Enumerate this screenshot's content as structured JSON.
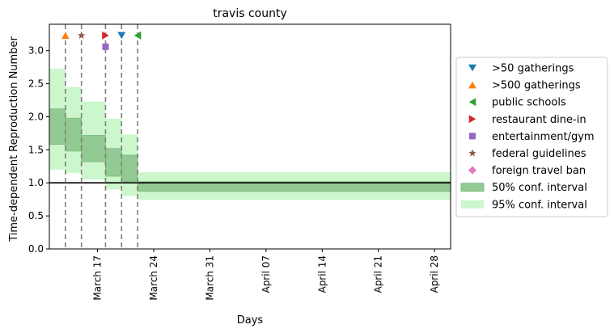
{
  "chart_data": {
    "type": "step",
    "title": "travis county",
    "xlabel": "Days",
    "ylabel": "Time-dependent Reproduction Number",
    "x_start": "2020-03-11",
    "x_end": "2020-04-30",
    "xticks": [
      "March 17",
      "March 24",
      "March 31",
      "April 07",
      "April 14",
      "April 21",
      "April 28"
    ],
    "xtick_dates": [
      "2020-03-17",
      "2020-03-24",
      "2020-03-31",
      "2020-04-07",
      "2020-04-14",
      "2020-04-21",
      "2020-04-28"
    ],
    "ylim": [
      0,
      3.4
    ],
    "yticks": [
      "0.0",
      "0.5",
      "1.0",
      "1.5",
      "2.0",
      "2.5",
      "3.0"
    ],
    "ytick_values": [
      0,
      0.5,
      1.0,
      1.5,
      2.0,
      2.5,
      3.0
    ],
    "reference_line": 1.0,
    "segments": [
      {
        "start": "2020-03-11",
        "end": "2020-03-13",
        "ci50": [
          1.58,
          2.12
        ],
        "ci95": [
          1.2,
          2.73
        ]
      },
      {
        "start": "2020-03-13",
        "end": "2020-03-15",
        "ci50": [
          1.48,
          1.98
        ],
        "ci95": [
          1.15,
          2.45
        ]
      },
      {
        "start": "2020-03-15",
        "end": "2020-03-18",
        "ci50": [
          1.32,
          1.72
        ],
        "ci95": [
          1.05,
          2.23
        ]
      },
      {
        "start": "2020-03-18",
        "end": "2020-03-20",
        "ci50": [
          1.1,
          1.52
        ],
        "ci95": [
          0.9,
          1.97
        ]
      },
      {
        "start": "2020-03-20",
        "end": "2020-03-22",
        "ci50": [
          1.02,
          1.42
        ],
        "ci95": [
          0.8,
          1.73
        ]
      },
      {
        "start": "2020-03-22",
        "end": "2020-04-30",
        "ci50": [
          0.87,
          1.02
        ],
        "ci95": [
          0.74,
          1.16
        ]
      }
    ],
    "events": [
      {
        "date": "2020-03-13",
        "y": 3.23,
        "series": ">500 gatherings"
      },
      {
        "date": "2020-03-15",
        "y": 3.23,
        "series": "federal guidelines"
      },
      {
        "date": "2020-03-18",
        "y": 3.23,
        "series": "restaurant dine-in"
      },
      {
        "date": "2020-03-18",
        "y": 3.06,
        "series": "entertainment/gym"
      },
      {
        "date": "2020-03-20",
        "y": 3.23,
        "series": ">50 gatherings"
      },
      {
        "date": "2020-03-22",
        "y": 3.23,
        "series": "public schools"
      }
    ],
    "legend": {
      "placement": "right",
      "entries": [
        {
          "label": ">50 gatherings",
          "marker": "triangle-down",
          "color": "#1f77b4"
        },
        {
          "label": ">500 gatherings",
          "marker": "triangle-up",
          "color": "#ff7f0e"
        },
        {
          "label": "public schools",
          "marker": "triangle-left",
          "color": "#2ca02c"
        },
        {
          "label": "restaurant dine-in",
          "marker": "triangle-right",
          "color": "#d62728"
        },
        {
          "label": "entertainment/gym",
          "marker": "square",
          "color": "#9467bd"
        },
        {
          "label": "federal guidelines",
          "marker": "star",
          "color": "#8c564b"
        },
        {
          "label": "foreign travel ban",
          "marker": "diamond",
          "color": "#e377c2"
        },
        {
          "label": "50% conf. interval",
          "marker": "patch",
          "color": "#93c993"
        },
        {
          "label": "95% conf. interval",
          "marker": "patch",
          "color": "#ccf7cc"
        }
      ]
    },
    "colors": {
      "ci50": "#93c993",
      "ci95": "#ccf7cc",
      "ci50_edge": "#73b273",
      "vline": "#7f7f7f"
    }
  }
}
